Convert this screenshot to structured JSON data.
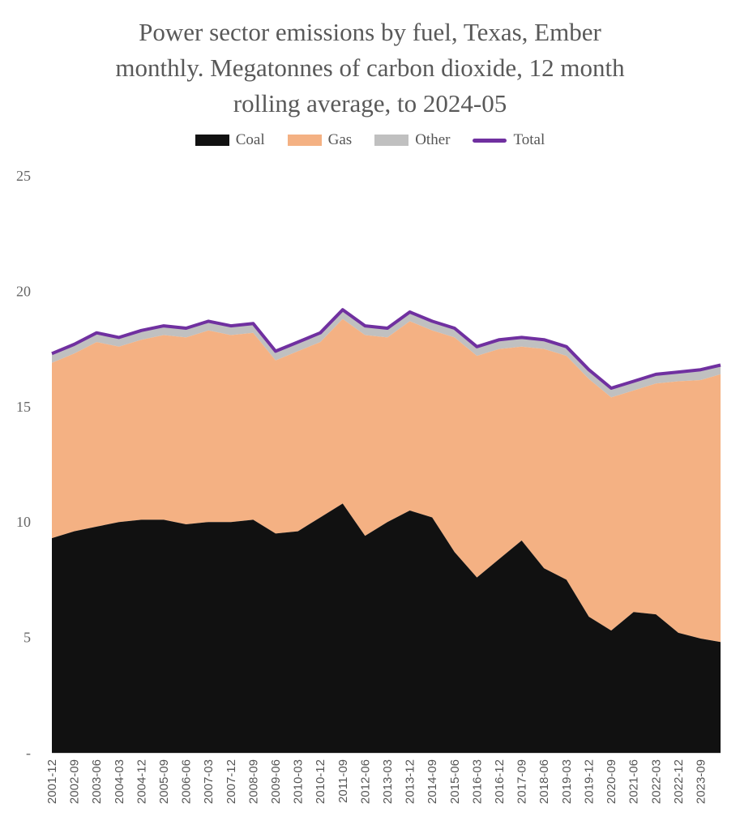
{
  "title_lines": [
    "Power sector emissions by fuel, Texas, Ember",
    "monthly. Megatonnes of carbon dioxide, 12 month",
    "rolling average, to 2024-05"
  ],
  "legend": [
    {
      "label": "Coal",
      "color": "#111111",
      "kind": "area"
    },
    {
      "label": "Gas",
      "color": "#f4b183",
      "kind": "area"
    },
    {
      "label": "Other",
      "color": "#c0c0c0",
      "kind": "area"
    },
    {
      "label": "Total",
      "color": "#7030a0",
      "kind": "line"
    }
  ],
  "chart_data": {
    "type": "area",
    "title": "Power sector emissions by fuel, Texas, Ember monthly. Megatonnes of carbon dioxide, 12 month rolling average, to 2024-05",
    "xlabel": "",
    "ylabel": "",
    "ylim": [
      0,
      25
    ],
    "yticks": [
      0,
      5,
      10,
      15,
      20,
      25
    ],
    "ytick_labels": [
      "-",
      "5",
      "10",
      "15",
      "20",
      "25"
    ],
    "grid": false,
    "legend_position": "top",
    "stacked": true,
    "x": [
      "2001-12",
      "2002-09",
      "2003-06",
      "2004-03",
      "2004-12",
      "2005-09",
      "2006-06",
      "2007-03",
      "2007-12",
      "2008-09",
      "2009-06",
      "2010-03",
      "2010-12",
      "2011-09",
      "2012-06",
      "2013-03",
      "2013-12",
      "2014-09",
      "2015-06",
      "2016-03",
      "2016-12",
      "2017-09",
      "2018-06",
      "2019-03",
      "2019-12",
      "2020-09",
      "2021-06",
      "2022-03",
      "2022-12",
      "2023-09",
      "2024-05"
    ],
    "xtick_labels": [
      "2001-12",
      "2002-09",
      "2003-06",
      "2004-03",
      "2004-12",
      "2005-09",
      "2006-06",
      "2007-03",
      "2007-12",
      "2008-09",
      "2009-06",
      "2010-03",
      "2010-12",
      "2011-09",
      "2012-06",
      "2013-03",
      "2013-12",
      "2014-09",
      "2015-06",
      "2016-03",
      "2016-12",
      "2017-09",
      "2018-06",
      "2019-03",
      "2019-12",
      "2020-09",
      "2021-06",
      "2022-03",
      "2022-12",
      "2023-09"
    ],
    "series": [
      {
        "name": "Coal",
        "values": [
          9.3,
          9.6,
          9.8,
          10.0,
          10.1,
          10.1,
          9.9,
          10.0,
          10.0,
          10.1,
          9.5,
          9.6,
          10.2,
          10.8,
          9.4,
          10.0,
          10.5,
          10.2,
          8.7,
          7.6,
          8.4,
          9.2,
          8.0,
          7.5,
          5.9,
          5.3,
          6.1,
          6.0,
          5.2,
          4.95,
          4.8
        ]
      },
      {
        "name": "Gas",
        "values": [
          7.6,
          7.7,
          8.0,
          7.6,
          7.8,
          8.0,
          8.1,
          8.3,
          8.1,
          8.1,
          7.5,
          7.8,
          7.6,
          8.0,
          8.7,
          8.0,
          8.2,
          8.1,
          9.3,
          9.6,
          9.1,
          8.4,
          9.5,
          9.7,
          10.3,
          10.1,
          9.6,
          10.0,
          10.9,
          11.2,
          11.6
        ]
      },
      {
        "name": "Other",
        "values": [
          0.4,
          0.4,
          0.4,
          0.4,
          0.4,
          0.4,
          0.4,
          0.4,
          0.4,
          0.4,
          0.4,
          0.4,
          0.4,
          0.4,
          0.4,
          0.4,
          0.4,
          0.4,
          0.4,
          0.4,
          0.4,
          0.4,
          0.4,
          0.4,
          0.4,
          0.4,
          0.4,
          0.4,
          0.4,
          0.45,
          0.4
        ]
      },
      {
        "name": "Total",
        "values": [
          17.3,
          17.7,
          18.2,
          18.0,
          18.3,
          18.5,
          18.4,
          18.7,
          18.5,
          18.6,
          17.4,
          17.8,
          18.2,
          19.2,
          18.5,
          18.4,
          19.1,
          18.7,
          18.4,
          17.6,
          17.9,
          18.0,
          17.9,
          17.6,
          16.6,
          15.8,
          16.1,
          16.4,
          16.5,
          16.6,
          16.8
        ]
      }
    ]
  }
}
